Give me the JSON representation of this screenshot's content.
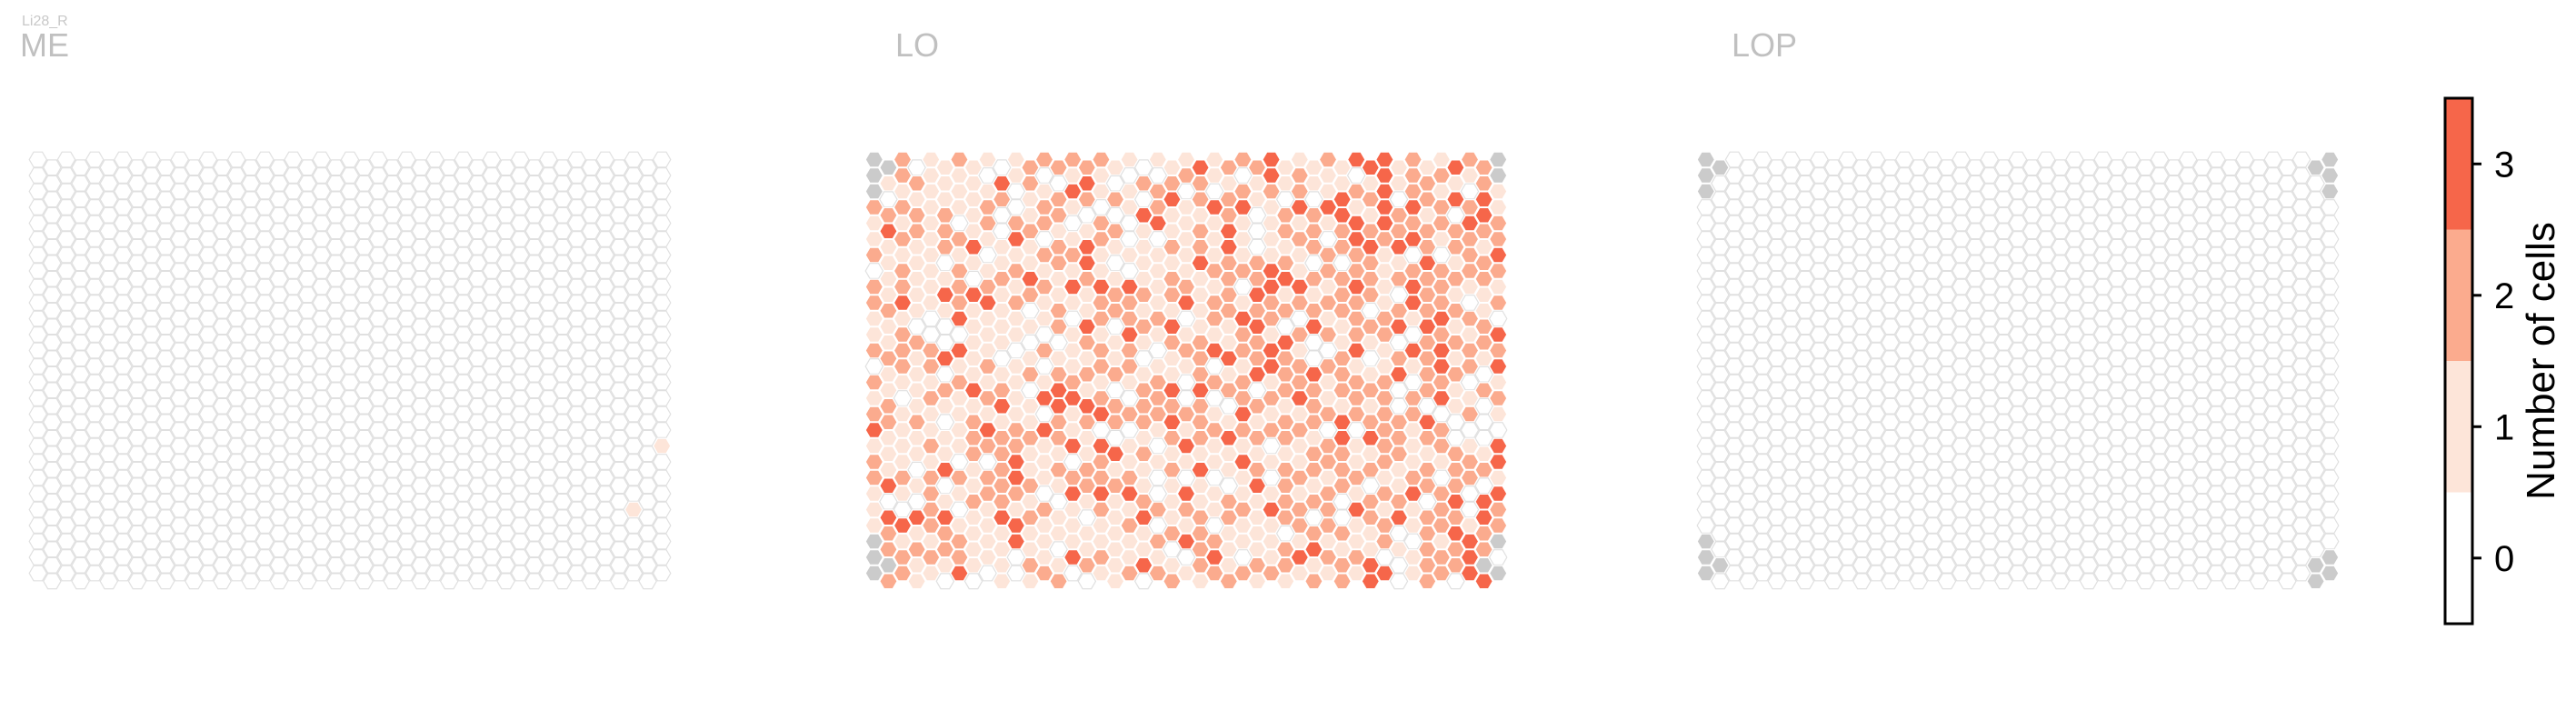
{
  "cell_type": "Li28_R",
  "chart_data": {
    "type": "heatmap",
    "subtype": "hexagonal column map",
    "panels": [
      {
        "title": "ME",
        "extra_counts": [
          [
            22,
            5,
            1
          ],
          [
            20,
            9,
            1
          ]
        ],
        "gray_border": false,
        "hot_density": 0.0
      },
      {
        "title": "LO",
        "gray_border": true,
        "hot_density": 1.0
      },
      {
        "title": "LOP",
        "gray_border": true,
        "hot_density": 0.0
      }
    ],
    "colorbar": {
      "label": "Number of cells",
      "ticks": [
        0,
        1,
        2,
        3
      ],
      "range": [
        -0.5,
        3.5
      ],
      "colors": [
        "#ffffff",
        "#fde5d9",
        "#fbab8e",
        "#f6664a"
      ]
    },
    "colors": {
      "zero_fill": "#ffffff",
      "cell_edge": "#e0e0e0",
      "missing_fill": "#cbcbcb"
    }
  }
}
